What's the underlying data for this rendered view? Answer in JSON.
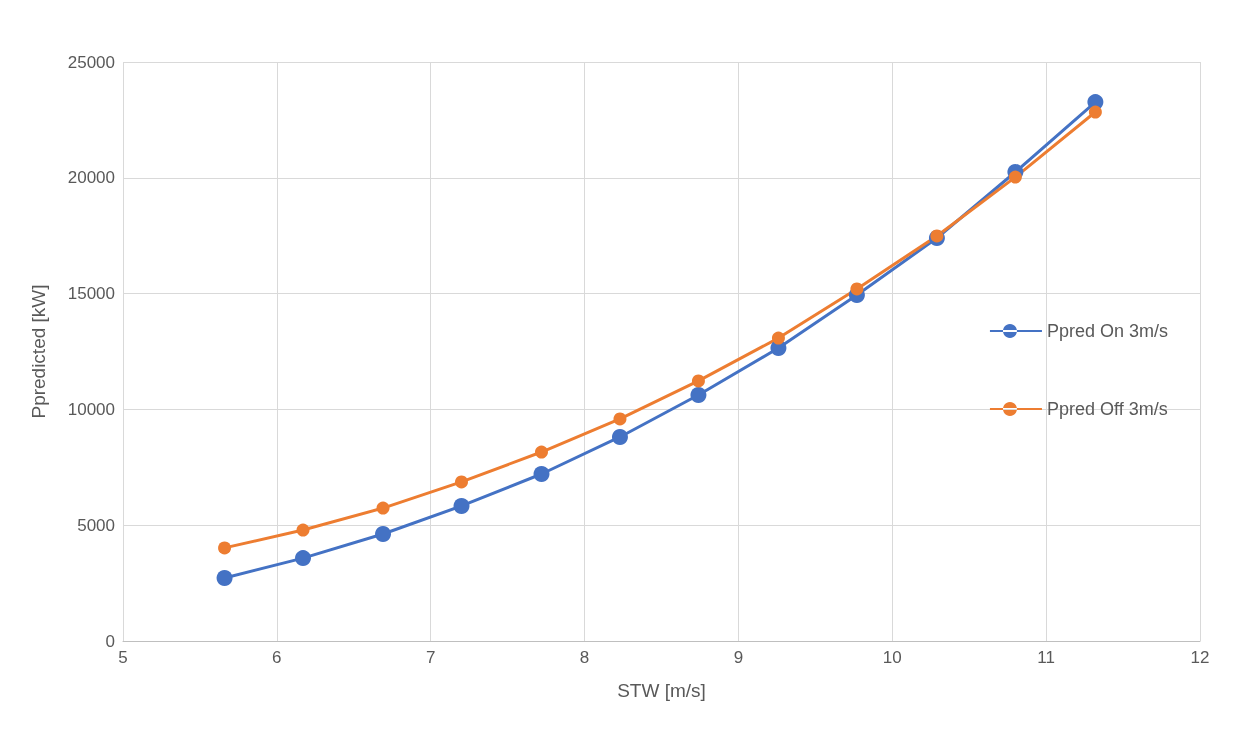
{
  "chart_data": {
    "type": "line",
    "xlabel": "STW [m/s]",
    "ylabel": "Ppredicted [kW]",
    "x": [
      5.66,
      6.17,
      6.69,
      7.2,
      7.72,
      8.23,
      8.74,
      9.26,
      9.77,
      10.29,
      10.8,
      11.32
    ],
    "series": [
      {
        "name": "Ppred On 3m/s",
        "color": "#4472c4",
        "values": [
          2720,
          3580,
          4620,
          5830,
          7210,
          8810,
          10620,
          12650,
          14940,
          17400,
          20250,
          23270
        ]
      },
      {
        "name": "Ppred Off 3m/s",
        "color": "#ed7d31",
        "values": [
          4020,
          4790,
          5740,
          6870,
          8160,
          9590,
          11230,
          13080,
          15200,
          17490,
          20030,
          22840
        ]
      }
    ],
    "xlim": [
      5,
      12
    ],
    "xticks": [
      5,
      6,
      7,
      8,
      9,
      10,
      11,
      12
    ],
    "ylim": [
      0,
      25000
    ],
    "yticks": [
      0,
      5000,
      10000,
      15000,
      20000,
      25000
    ],
    "grid": true,
    "legend": "right",
    "marker": "circle",
    "line_style": "solid"
  }
}
